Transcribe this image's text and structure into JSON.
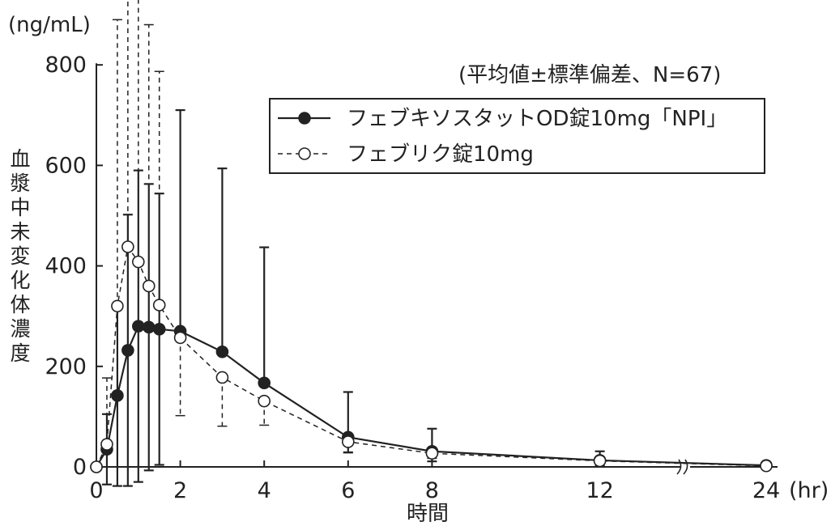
{
  "chart_data": {
    "type": "line",
    "y_unit": "(ng/mL)",
    "ylabel": "血漿中未変化体濃度",
    "xlabel": "時間",
    "x_unit": "(hr)",
    "note": "(平均値±標準偏差、N=67)",
    "yticks": [
      0,
      200,
      400,
      600,
      800
    ],
    "xticks": [
      "0",
      "2",
      "4",
      "6",
      "8",
      "12",
      "24"
    ],
    "ylim": [
      0,
      800
    ],
    "x_axis_break": "between 12 and 24",
    "legend_position": "top-right",
    "series": [
      {
        "name": "フェブキソスタットOD錠10mg「NPI」",
        "marker": "filled-circle",
        "line": "solid",
        "color": "#222222",
        "x": [
          0,
          0.25,
          0.5,
          0.75,
          1,
          1.25,
          1.5,
          2,
          3,
          4,
          6,
          8,
          12,
          24
        ],
        "y": [
          0,
          35,
          142,
          232,
          280,
          278,
          274,
          270,
          229,
          167,
          59,
          31,
          13,
          3
        ],
        "sd_upper": [
          0,
          70,
          180,
          270,
          310,
          285,
          270,
          440,
          365,
          270,
          90,
          45,
          18,
          5
        ],
        "sd_lower": [
          0,
          70,
          180,
          270,
          310,
          285,
          270,
          0,
          0,
          0,
          30,
          20,
          10,
          0
        ]
      },
      {
        "name": "フェブリク錠10mg",
        "marker": "open-circle",
        "line": "dashed",
        "color": "#222222",
        "x": [
          0,
          0.25,
          0.5,
          0.75,
          1,
          1.25,
          1.5,
          2,
          3,
          4,
          6,
          8,
          12,
          24
        ],
        "y": [
          0,
          45,
          320,
          438,
          408,
          360,
          322,
          257,
          178,
          131,
          50,
          27,
          12,
          2
        ],
        "sd_upper": [
          0,
          132,
          570,
          700,
          610,
          520,
          465,
          0,
          0,
          0,
          0,
          0,
          0,
          0
        ],
        "sd_lower": [
          0,
          0,
          0,
          0,
          0,
          0,
          0,
          155,
          97,
          48,
          22,
          10,
          5,
          0
        ]
      }
    ]
  }
}
